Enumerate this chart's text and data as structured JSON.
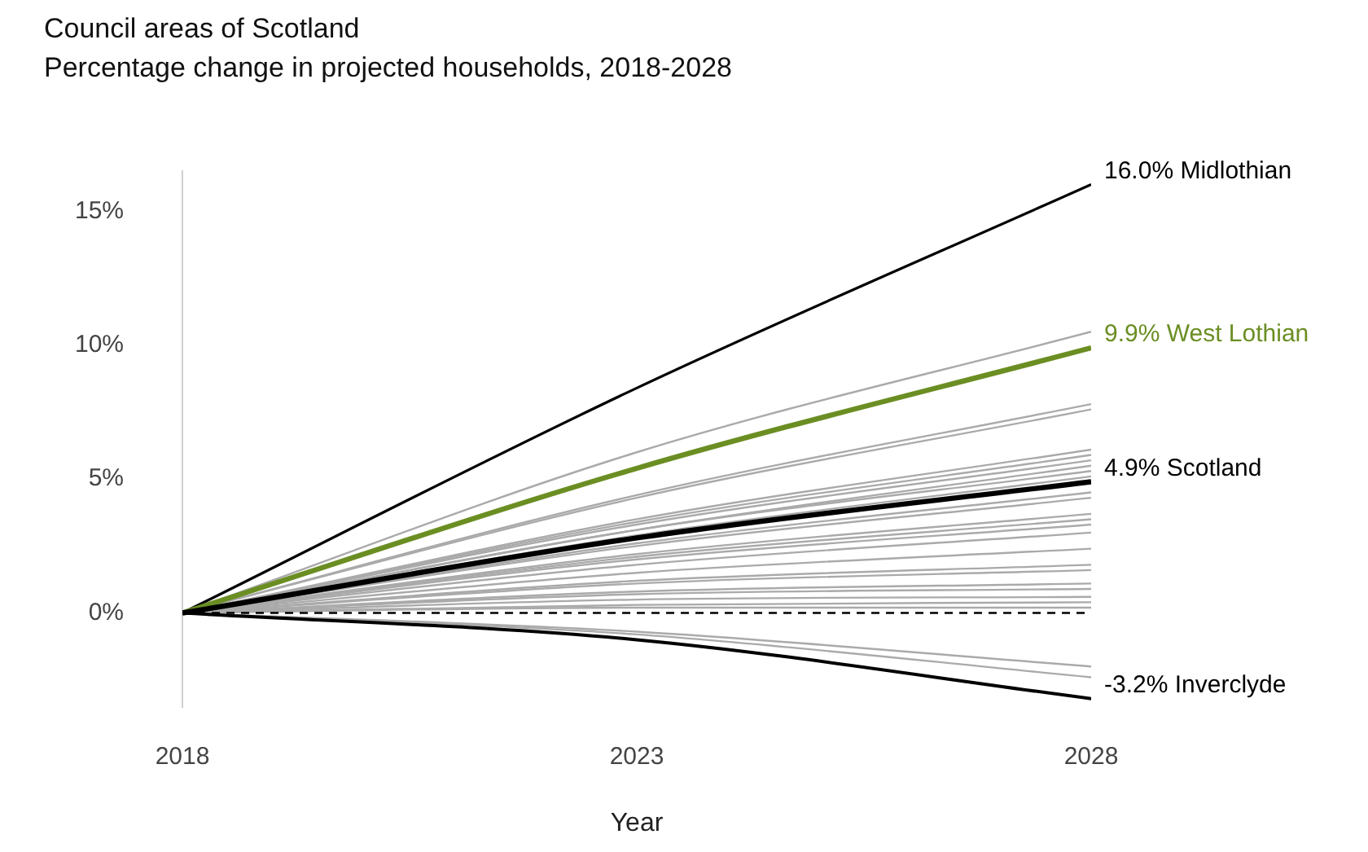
{
  "chart_data": {
    "type": "line",
    "title": "Council areas of Scotland",
    "subtitle": "Percentage change in projected households, 2018-2028",
    "xlabel": "Year",
    "x": [
      2018,
      2023,
      2028
    ],
    "xlim": [
      2018,
      2028
    ],
    "xticks": [
      2018,
      2023,
      2028
    ],
    "ylim": [
      -3.5,
      16.5
    ],
    "yticks": [
      {
        "value": 0,
        "label": "0%"
      },
      {
        "value": 5,
        "label": "5%"
      },
      {
        "value": 10,
        "label": "10%"
      },
      {
        "value": 15,
        "label": "15%"
      }
    ],
    "grid": false,
    "legend": false,
    "marker": "none",
    "ref_lines": [
      {
        "axis": "y",
        "value": 0,
        "color": "#000000",
        "line_style": "dashed"
      }
    ],
    "series": [
      {
        "color": "#aaaaaa",
        "values": [
          0,
          6.0,
          10.5
        ]
      },
      {
        "color": "#aaaaaa",
        "values": [
          0,
          4.4,
          7.8
        ]
      },
      {
        "color": "#aaaaaa",
        "values": [
          0,
          4.3,
          7.6
        ]
      },
      {
        "color": "#aaaaaa",
        "values": [
          0,
          3.5,
          6.1
        ]
      },
      {
        "color": "#aaaaaa",
        "values": [
          0,
          3.4,
          5.9
        ]
      },
      {
        "color": "#aaaaaa",
        "values": [
          0,
          3.3,
          5.7
        ]
      },
      {
        "color": "#aaaaaa",
        "values": [
          0,
          3.1,
          5.5
        ]
      },
      {
        "color": "#aaaaaa",
        "values": [
          0,
          3.1,
          5.3
        ]
      },
      {
        "color": "#aaaaaa",
        "values": [
          0,
          2.9,
          5.1
        ]
      },
      {
        "color": "#aaaaaa",
        "values": [
          0,
          2.6,
          4.5
        ]
      },
      {
        "color": "#aaaaaa",
        "values": [
          0,
          2.5,
          4.3
        ]
      },
      {
        "color": "#aaaaaa",
        "values": [
          0,
          2.2,
          3.7
        ]
      },
      {
        "color": "#aaaaaa",
        "values": [
          0,
          2.1,
          3.5
        ]
      },
      {
        "color": "#aaaaaa",
        "values": [
          0,
          2.0,
          3.3
        ]
      },
      {
        "color": "#aaaaaa",
        "values": [
          0,
          1.8,
          3.0
        ]
      },
      {
        "color": "#aaaaaa",
        "values": [
          0,
          1.5,
          2.4
        ]
      },
      {
        "color": "#aaaaaa",
        "values": [
          0,
          1.2,
          1.8
        ]
      },
      {
        "color": "#aaaaaa",
        "values": [
          0,
          1.1,
          1.6
        ]
      },
      {
        "color": "#aaaaaa",
        "values": [
          0,
          0.8,
          1.1
        ]
      },
      {
        "color": "#aaaaaa",
        "values": [
          0,
          0.7,
          0.9
        ]
      },
      {
        "color": "#aaaaaa",
        "values": [
          0,
          0.5,
          0.6
        ]
      },
      {
        "color": "#aaaaaa",
        "values": [
          0,
          0.3,
          0.4
        ]
      },
      {
        "color": "#aaaaaa",
        "values": [
          0,
          0.2,
          0.2
        ]
      },
      {
        "color": "#aaaaaa",
        "values": [
          0,
          -0.7,
          -2.0
        ]
      },
      {
        "color": "#aaaaaa",
        "values": [
          0,
          -0.8,
          -2.4
        ]
      },
      {
        "name": "Midlothian",
        "color": "#000000",
        "values": [
          0,
          8.4,
          16.0
        ],
        "value_labels": [
          null,
          null,
          "16.0%"
        ]
      },
      {
        "name": "West Lothian",
        "color": "#6b8e23",
        "values": [
          0,
          5.4,
          9.9
        ],
        "value_labels": [
          null,
          null,
          "9.9%"
        ]
      },
      {
        "name": "Scotland",
        "color": "#000000",
        "values": [
          0,
          2.8,
          4.9
        ],
        "value_labels": [
          null,
          null,
          "4.9%"
        ]
      },
      {
        "name": "Inverclyde",
        "color": "#000000",
        "values": [
          0,
          -1.0,
          -3.2
        ],
        "value_labels": [
          null,
          null,
          "-3.2%"
        ]
      }
    ]
  }
}
